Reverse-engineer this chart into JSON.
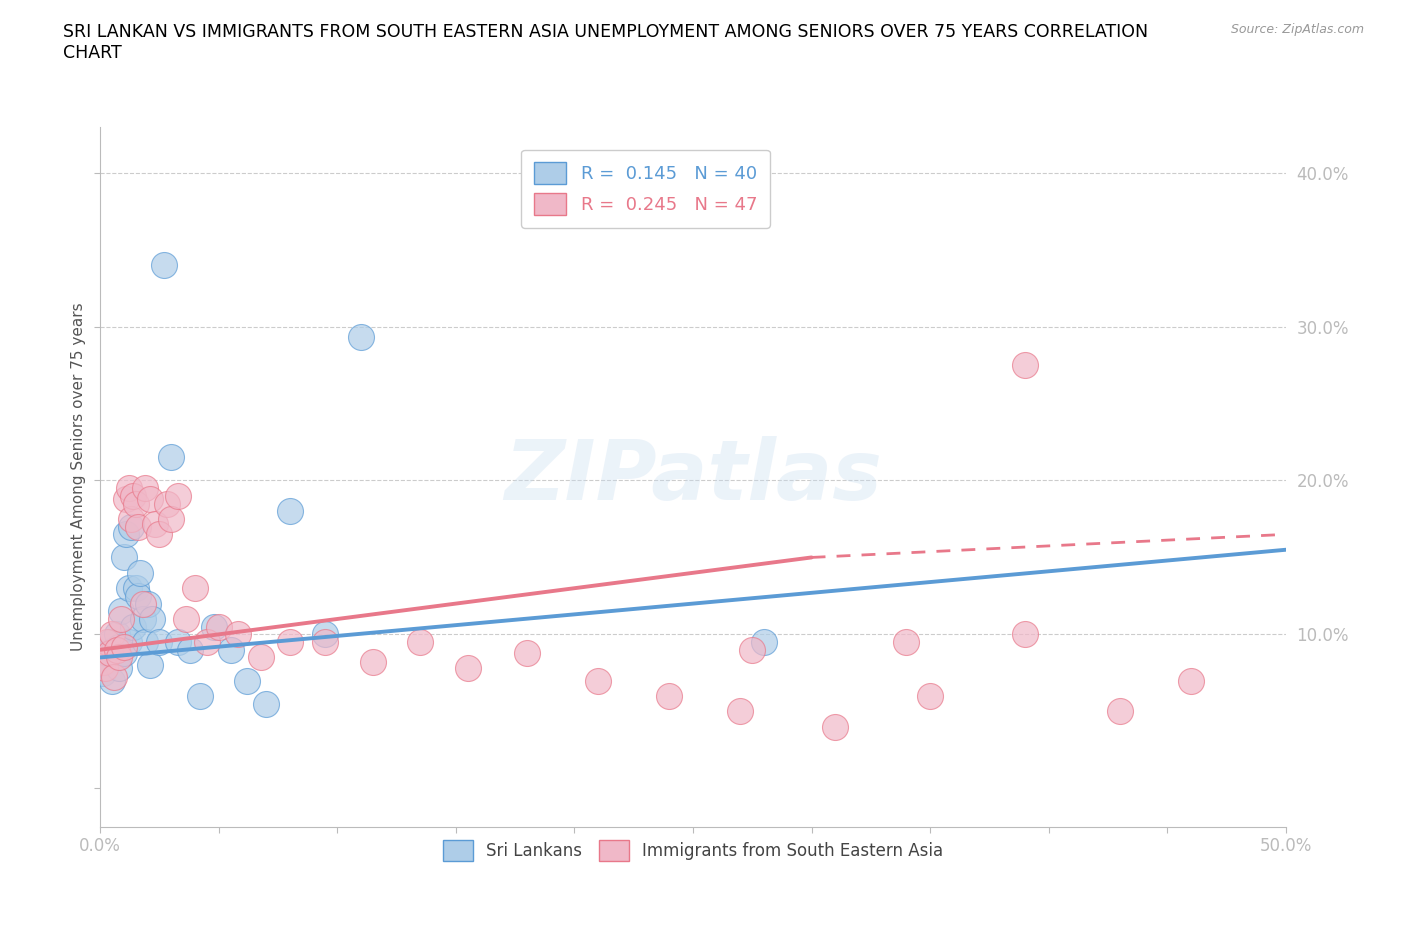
{
  "title": "SRI LANKAN VS IMMIGRANTS FROM SOUTH EASTERN ASIA UNEMPLOYMENT AMONG SENIORS OVER 75 YEARS CORRELATION\nCHART",
  "source_text": "Source: ZipAtlas.com",
  "ylabel": "Unemployment Among Seniors over 75 years",
  "xlim": [
    0.0,
    0.5
  ],
  "ylim": [
    -0.025,
    0.43
  ],
  "watermark": "ZIPatlas",
  "blue_color": "#5b9bd5",
  "pink_color": "#e8788a",
  "blue_marker_facecolor": "#aecde8",
  "pink_marker_facecolor": "#f0b8c8",
  "grid_color": "#cccccc",
  "axis_color": "#bbbbbb",
  "tick_label_color": "#5b9bd5",
  "legend_label_sri": "Sri Lankans",
  "legend_label_sea": "Immigrants from South Eastern Asia",
  "blue_R": "0.145",
  "blue_N": "40",
  "pink_R": "0.245",
  "pink_N": "47",
  "sri_lankans_x": [
    0.001,
    0.002,
    0.003,
    0.004,
    0.005,
    0.006,
    0.007,
    0.007,
    0.008,
    0.008,
    0.009,
    0.01,
    0.01,
    0.011,
    0.012,
    0.012,
    0.013,
    0.014,
    0.015,
    0.016,
    0.017,
    0.018,
    0.019,
    0.02,
    0.021,
    0.022,
    0.025,
    0.027,
    0.03,
    0.033,
    0.038,
    0.042,
    0.048,
    0.055,
    0.062,
    0.07,
    0.08,
    0.095,
    0.11,
    0.28
  ],
  "sri_lankans_y": [
    0.075,
    0.082,
    0.088,
    0.095,
    0.07,
    0.09,
    0.085,
    0.1,
    0.078,
    0.092,
    0.115,
    0.088,
    0.15,
    0.165,
    0.13,
    0.095,
    0.17,
    0.105,
    0.13,
    0.125,
    0.14,
    0.11,
    0.095,
    0.12,
    0.08,
    0.11,
    0.095,
    0.34,
    0.215,
    0.095,
    0.09,
    0.06,
    0.105,
    0.09,
    0.07,
    0.055,
    0.18,
    0.1,
    0.293,
    0.095
  ],
  "sea_x": [
    0.001,
    0.002,
    0.003,
    0.004,
    0.005,
    0.006,
    0.007,
    0.008,
    0.009,
    0.01,
    0.011,
    0.012,
    0.013,
    0.014,
    0.015,
    0.016,
    0.018,
    0.019,
    0.021,
    0.023,
    0.025,
    0.028,
    0.03,
    0.033,
    0.036,
    0.04,
    0.045,
    0.05,
    0.058,
    0.068,
    0.08,
    0.095,
    0.115,
    0.135,
    0.155,
    0.18,
    0.21,
    0.24,
    0.27,
    0.31,
    0.35,
    0.39,
    0.43,
    0.46,
    0.39,
    0.34,
    0.275
  ],
  "sea_y": [
    0.082,
    0.078,
    0.095,
    0.088,
    0.1,
    0.072,
    0.09,
    0.085,
    0.11,
    0.092,
    0.188,
    0.195,
    0.175,
    0.19,
    0.185,
    0.17,
    0.12,
    0.195,
    0.188,
    0.172,
    0.165,
    0.185,
    0.175,
    0.19,
    0.11,
    0.13,
    0.095,
    0.105,
    0.1,
    0.085,
    0.095,
    0.095,
    0.082,
    0.095,
    0.078,
    0.088,
    0.07,
    0.06,
    0.05,
    0.04,
    0.06,
    0.1,
    0.05,
    0.07,
    0.275,
    0.095,
    0.09
  ],
  "blue_trend_x": [
    0.0,
    0.5
  ],
  "blue_trend_y": [
    0.085,
    0.155
  ],
  "pink_trend_x": [
    0.0,
    0.3
  ],
  "pink_trend_y": [
    0.09,
    0.15
  ]
}
